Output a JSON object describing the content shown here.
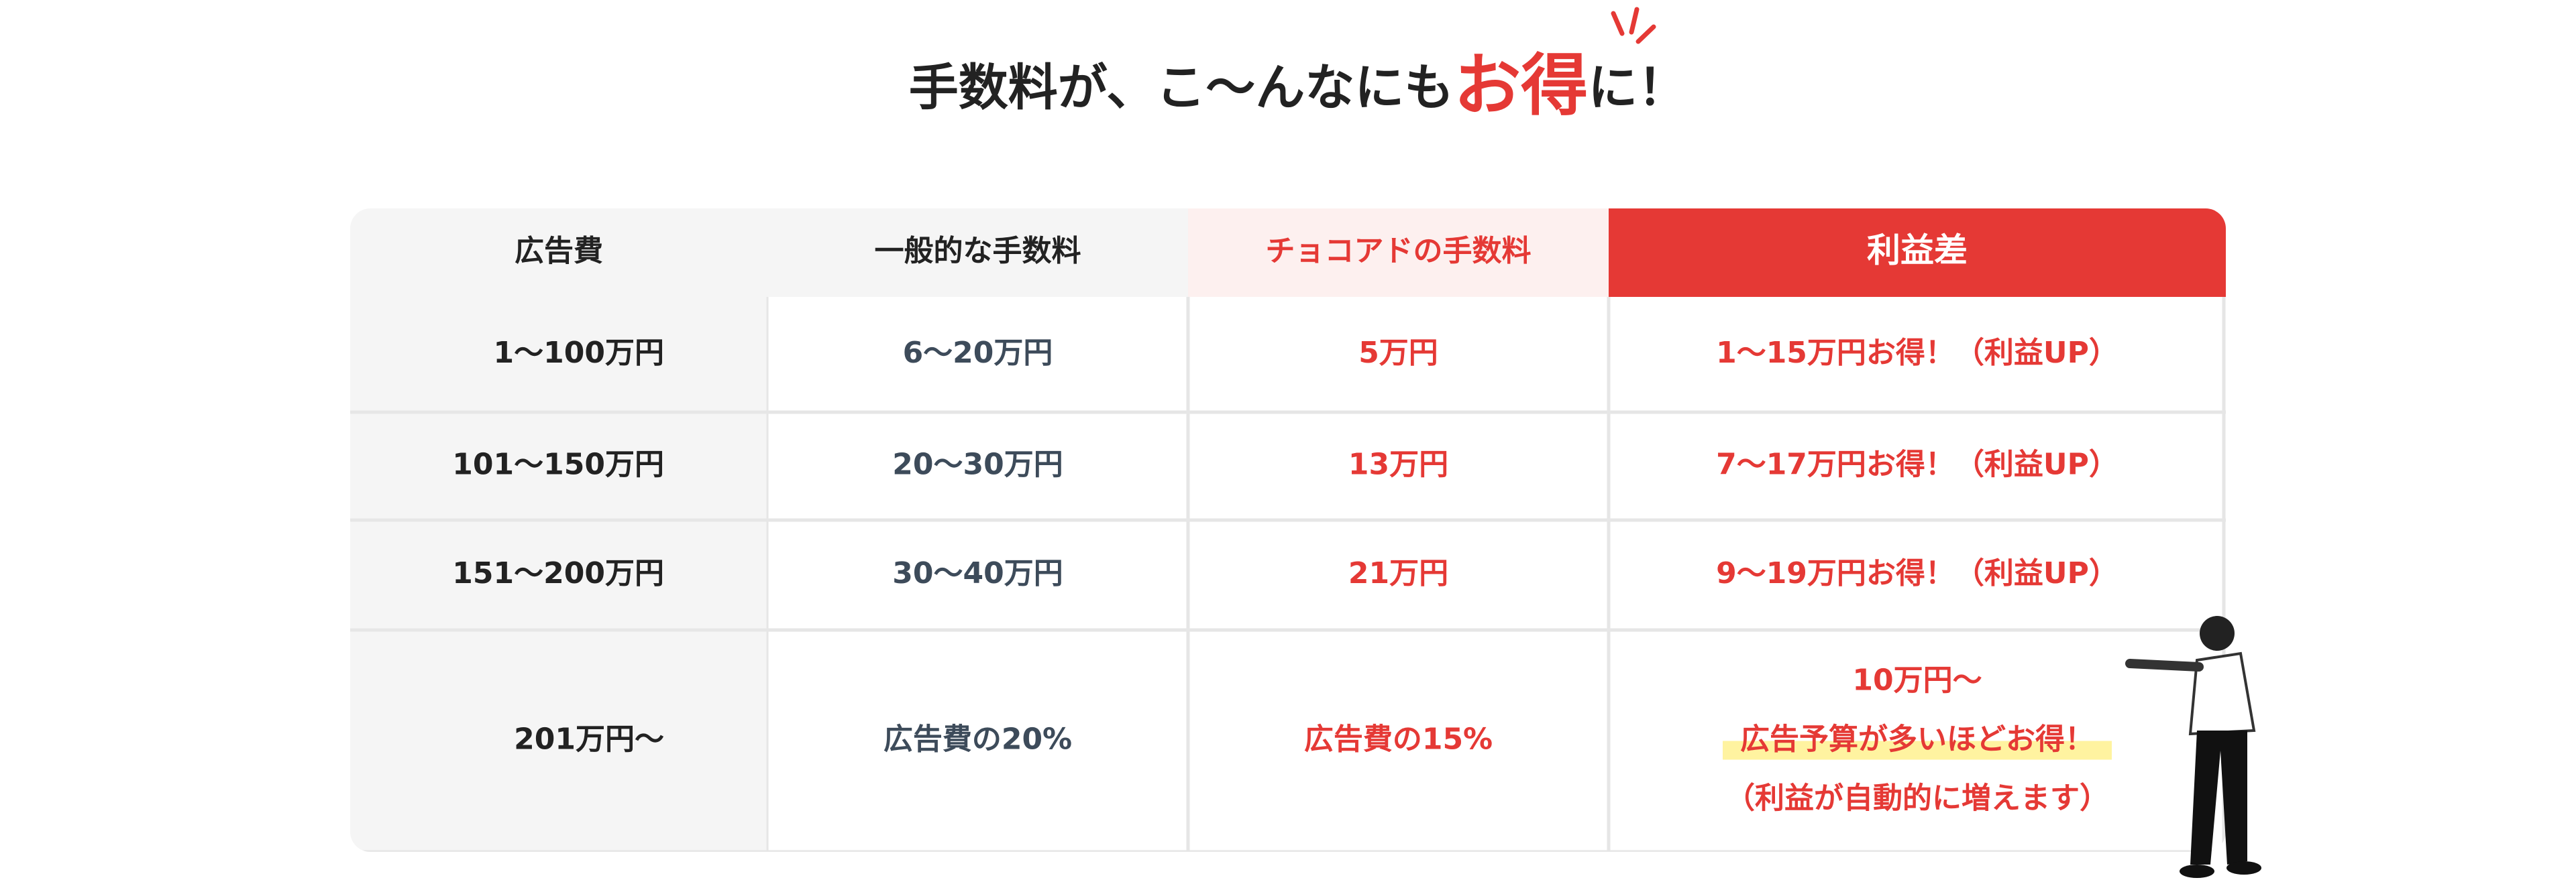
{
  "title": {
    "before": "手数料が、こ〜んなにも",
    "highlight": "お得",
    "after": "に！"
  },
  "table": {
    "headers": [
      "広告費",
      "一般的な手数料",
      "チョコアドの手数料",
      "利益差"
    ],
    "rows": [
      [
        "1〜100万円",
        "6〜20万円",
        "5万円",
        "1〜15万円お得！（利益UP）"
      ],
      [
        "101〜150万円",
        "20〜30万円",
        "13万円",
        "7〜17万円お得！（利益UP）"
      ],
      [
        "151〜200万円",
        "30〜40万円",
        "21万円",
        "9〜19万円お得！（利益UP）"
      ],
      [
        "201万円〜",
        "広告費の20%",
        "広告費の15%",
        [
          "10万円〜",
          "広告予算が多いほどお得！",
          "（利益が自動的に増えます）"
        ]
      ]
    ]
  }
}
